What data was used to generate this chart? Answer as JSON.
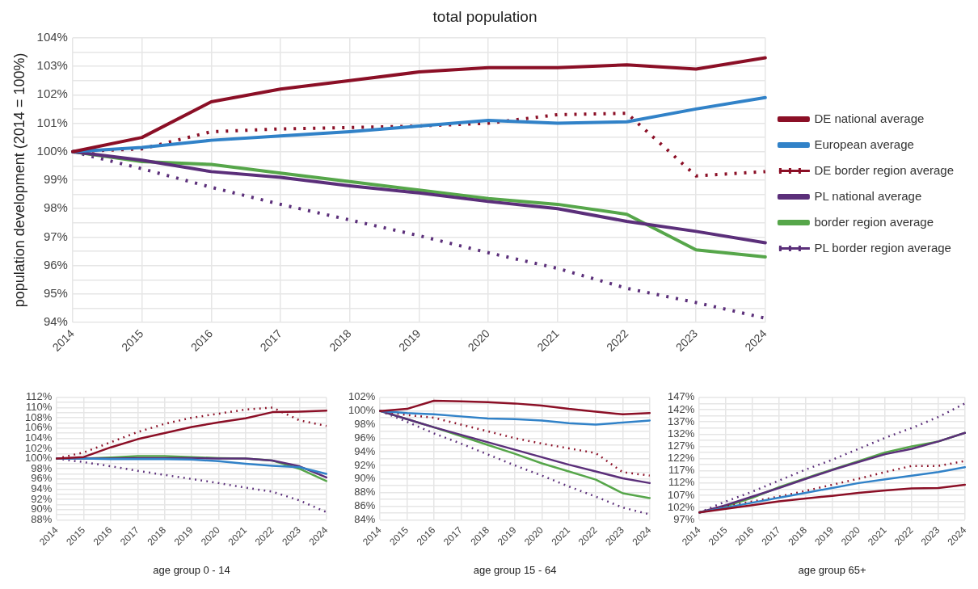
{
  "chart_data": [
    {
      "type": "line",
      "title": "total population",
      "ylabel": "population development (2014 = 100%)",
      "categories": [
        "2014",
        "2015",
        "2016",
        "2017",
        "2018",
        "2019",
        "2020",
        "2021",
        "2022",
        "2023",
        "2024"
      ],
      "ylim": [
        94,
        104
      ],
      "yticks": [
        {
          "value": 94,
          "label": "94%"
        },
        {
          "value": 94.5,
          "label": null
        },
        {
          "value": 95,
          "label": "95%"
        },
        {
          "value": 95.5,
          "label": null
        },
        {
          "value": 96,
          "label": "96%"
        },
        {
          "value": 96.5,
          "label": null
        },
        {
          "value": 97,
          "label": "97%"
        },
        {
          "value": 97.5,
          "label": null
        },
        {
          "value": 98,
          "label": "98%"
        },
        {
          "value": 98.5,
          "label": null
        },
        {
          "value": 99,
          "label": "99%"
        },
        {
          "value": 99.5,
          "label": null
        },
        {
          "value": 100,
          "label": "100%"
        },
        {
          "value": 100.5,
          "label": null
        },
        {
          "value": 101,
          "label": "101%"
        },
        {
          "value": 101.5,
          "label": null
        },
        {
          "value": 102,
          "label": "102%"
        },
        {
          "value": 102.5,
          "label": null
        },
        {
          "value": 103,
          "label": "103%"
        },
        {
          "value": 103.5,
          "label": null
        },
        {
          "value": 104,
          "label": "104%"
        }
      ],
      "grid": true,
      "legend": "right",
      "marker": "none",
      "series": [
        {
          "name": "DE national average",
          "color": "#8b0f26",
          "line_style": "solid",
          "values": [
            100,
            100.5,
            101.75,
            102.2,
            102.5,
            102.8,
            102.95,
            102.95,
            103.05,
            102.9,
            103.3
          ]
        },
        {
          "name": "European average",
          "color": "#3182c8",
          "line_style": "solid",
          "values": [
            100,
            100.15,
            100.4,
            100.55,
            100.7,
            100.9,
            101.1,
            101.0,
            101.05,
            101.5,
            101.9
          ]
        },
        {
          "name": "DE border region average",
          "color": "#8b0f26",
          "line_style": "dotted",
          "values": [
            100,
            100.1,
            100.7,
            100.8,
            100.85,
            100.9,
            101.0,
            101.3,
            101.35,
            99.15,
            99.3
          ]
        },
        {
          "name": "PL national average",
          "color": "#5b2f7a",
          "line_style": "solid",
          "values": [
            100,
            99.7,
            99.3,
            99.1,
            98.8,
            98.55,
            98.25,
            98.0,
            97.55,
            97.2,
            96.8
          ]
        },
        {
          "name": "border region average",
          "color": "#56a64a",
          "line_style": "solid",
          "values": [
            100,
            99.65,
            99.55,
            99.25,
            98.95,
            98.65,
            98.35,
            98.15,
            97.8,
            96.55,
            96.3
          ]
        },
        {
          "name": "PL border region average",
          "color": "#5b2f7a",
          "line_style": "dotted",
          "values": [
            100,
            99.4,
            98.75,
            98.15,
            97.6,
            97.05,
            96.45,
            95.9,
            95.2,
            94.7,
            94.15
          ]
        }
      ]
    },
    {
      "type": "line",
      "xlabel": "age group 0 - 14",
      "categories": [
        "2014",
        "2015",
        "2016",
        "2017",
        "2018",
        "2019",
        "2020",
        "2021",
        "2022",
        "2023",
        "2024"
      ],
      "ylim": [
        88,
        112
      ],
      "yticks": [
        {
          "value": 88,
          "label": "88%"
        },
        {
          "value": 89,
          "label": null
        },
        {
          "value": 90,
          "label": "90%"
        },
        {
          "value": 91,
          "label": null
        },
        {
          "value": 92,
          "label": "92%"
        },
        {
          "value": 93,
          "label": null
        },
        {
          "value": 94,
          "label": "94%"
        },
        {
          "value": 95,
          "label": null
        },
        {
          "value": 96,
          "label": "96%"
        },
        {
          "value": 97,
          "label": null
        },
        {
          "value": 98,
          "label": "98%"
        },
        {
          "value": 99,
          "label": null
        },
        {
          "value": 100,
          "label": "100%"
        },
        {
          "value": 101,
          "label": null
        },
        {
          "value": 102,
          "label": "102%"
        },
        {
          "value": 103,
          "label": null
        },
        {
          "value": 104,
          "label": "104%"
        },
        {
          "value": 105,
          "label": null
        },
        {
          "value": 106,
          "label": "106%"
        },
        {
          "value": 107,
          "label": null
        },
        {
          "value": 108,
          "label": "108%"
        },
        {
          "value": 109,
          "label": null
        },
        {
          "value": 110,
          "label": "110%"
        },
        {
          "value": 111,
          "label": null
        },
        {
          "value": 112,
          "label": "112%"
        }
      ],
      "grid": true,
      "marker": "none",
      "series": [
        {
          "color": "#8b0f26",
          "line_style": "solid",
          "values": [
            100,
            100.3,
            102.2,
            103.8,
            105,
            106.2,
            107.1,
            107.9,
            109.1,
            109.2,
            109.4
          ]
        },
        {
          "color": "#3182c8",
          "line_style": "solid",
          "values": [
            100,
            100,
            99.9,
            99.9,
            99.9,
            99.8,
            99.5,
            99.0,
            98.6,
            98.3,
            97.0
          ]
        },
        {
          "color": "#8b0f26",
          "line_style": "dotted",
          "values": [
            100,
            101.2,
            103.2,
            105.2,
            106.8,
            108.0,
            108.8,
            109.6,
            110.0,
            107.5,
            106.4
          ]
        },
        {
          "color": "#5b2f7a",
          "line_style": "solid",
          "values": [
            100,
            100,
            100,
            100.1,
            100.1,
            100.1,
            100.0,
            100.0,
            99.6,
            98.5,
            96.3
          ]
        },
        {
          "color": "#56a64a",
          "line_style": "solid",
          "values": [
            100,
            100,
            100.2,
            100.5,
            100.5,
            100.3,
            100.1,
            100.0,
            99.6,
            98.0,
            95.6
          ]
        },
        {
          "color": "#5b2f7a",
          "line_style": "dotted",
          "values": [
            100,
            99.3,
            98.5,
            97.6,
            96.8,
            96.0,
            95.2,
            94.3,
            93.5,
            91.8,
            89.5
          ]
        }
      ]
    },
    {
      "type": "line",
      "xlabel": "age group 15 - 64",
      "categories": [
        "2014",
        "2015",
        "2016",
        "2017",
        "2018",
        "2019",
        "2020",
        "2021",
        "2022",
        "2023",
        "2024"
      ],
      "ylim": [
        84,
        102
      ],
      "yticks": [
        {
          "value": 84,
          "label": "84%"
        },
        {
          "value": 85,
          "label": null
        },
        {
          "value": 86,
          "label": "86%"
        },
        {
          "value": 87,
          "label": null
        },
        {
          "value": 88,
          "label": "88%"
        },
        {
          "value": 89,
          "label": null
        },
        {
          "value": 90,
          "label": "90%"
        },
        {
          "value": 91,
          "label": null
        },
        {
          "value": 92,
          "label": "92%"
        },
        {
          "value": 93,
          "label": null
        },
        {
          "value": 94,
          "label": "94%"
        },
        {
          "value": 95,
          "label": null
        },
        {
          "value": 96,
          "label": "96%"
        },
        {
          "value": 97,
          "label": null
        },
        {
          "value": 98,
          "label": "98%"
        },
        {
          "value": 99,
          "label": null
        },
        {
          "value": 100,
          "label": "100%"
        },
        {
          "value": 101,
          "label": null
        },
        {
          "value": 102,
          "label": "102%"
        }
      ],
      "grid": true,
      "marker": "none",
      "series": [
        {
          "color": "#8b0f26",
          "line_style": "solid",
          "values": [
            100,
            100.3,
            101.5,
            101.4,
            101.3,
            101.1,
            100.8,
            100.3,
            99.9,
            99.5,
            99.7
          ]
        },
        {
          "color": "#3182c8",
          "line_style": "solid",
          "values": [
            100,
            99.7,
            99.5,
            99.2,
            98.9,
            98.8,
            98.6,
            98.2,
            98.0,
            98.3,
            98.6
          ]
        },
        {
          "color": "#8b0f26",
          "line_style": "dotted",
          "values": [
            100,
            99.4,
            99.0,
            98.0,
            97.0,
            96.0,
            95.2,
            94.5,
            93.8,
            91.0,
            90.5
          ]
        },
        {
          "color": "#5b2f7a",
          "line_style": "solid",
          "values": [
            100,
            98.8,
            97.6,
            96.5,
            95.4,
            94.3,
            93.2,
            92.1,
            91.1,
            90.1,
            89.4
          ]
        },
        {
          "color": "#56a64a",
          "line_style": "solid",
          "values": [
            100,
            98.8,
            97.6,
            96.3,
            95.0,
            93.7,
            92.3,
            91.1,
            89.9,
            87.9,
            87.2
          ]
        },
        {
          "color": "#5b2f7a",
          "line_style": "dotted",
          "values": [
            100,
            98.4,
            96.7,
            95.2,
            93.6,
            92.0,
            90.5,
            88.9,
            87.4,
            85.8,
            84.8
          ]
        }
      ]
    },
    {
      "type": "line",
      "xlabel": "age group 65+",
      "categories": [
        "2014",
        "2015",
        "2016",
        "2017",
        "2018",
        "2019",
        "2020",
        "2021",
        "2022",
        "2023",
        "2024"
      ],
      "ylim": [
        97,
        147
      ],
      "yticks": [
        {
          "value": 97,
          "label": "97%"
        },
        {
          "value": 99.5,
          "label": null
        },
        {
          "value": 102,
          "label": "102%"
        },
        {
          "value": 104.5,
          "label": null
        },
        {
          "value": 107,
          "label": "107%"
        },
        {
          "value": 109.5,
          "label": null
        },
        {
          "value": 112,
          "label": "112%"
        },
        {
          "value": 114.5,
          "label": null
        },
        {
          "value": 117,
          "label": "117%"
        },
        {
          "value": 119.5,
          "label": null
        },
        {
          "value": 122,
          "label": "122%"
        },
        {
          "value": 124.5,
          "label": null
        },
        {
          "value": 127,
          "label": "127%"
        },
        {
          "value": 129.5,
          "label": null
        },
        {
          "value": 132,
          "label": "132%"
        },
        {
          "value": 134.5,
          "label": null
        },
        {
          "value": 137,
          "label": "137%"
        },
        {
          "value": 139.5,
          "label": null
        },
        {
          "value": 142,
          "label": "142%"
        },
        {
          "value": 144.5,
          "label": null
        },
        {
          "value": 147,
          "label": "147%"
        }
      ],
      "grid": true,
      "marker": "none",
      "series": [
        {
          "color": "#8b0f26",
          "line_style": "solid",
          "values": [
            100,
            101.5,
            103,
            104.5,
            105.7,
            106.8,
            108,
            109,
            109.8,
            110,
            111.3
          ]
        },
        {
          "color": "#3182c8",
          "line_style": "solid",
          "values": [
            100,
            102,
            104,
            106,
            108,
            110,
            112,
            113.5,
            115,
            116.5,
            118.5
          ]
        },
        {
          "color": "#8b0f26",
          "line_style": "dotted",
          "values": [
            100,
            102.5,
            104.5,
            106.5,
            108.8,
            111.3,
            113.8,
            116.5,
            119,
            119,
            121
          ]
        },
        {
          "color": "#5b2f7a",
          "line_style": "solid",
          "values": [
            100,
            103,
            106.5,
            110,
            113.7,
            117.3,
            120.6,
            123.8,
            126,
            129,
            132.5
          ]
        },
        {
          "color": "#56a64a",
          "line_style": "solid",
          "values": [
            100,
            102.5,
            106,
            110.3,
            114,
            117.5,
            121,
            124.5,
            127,
            129,
            132.5
          ]
        },
        {
          "color": "#5b2f7a",
          "line_style": "dotted",
          "values": [
            100,
            104.5,
            108.5,
            113,
            117.5,
            121.5,
            126,
            130.5,
            134.5,
            139,
            144.5
          ]
        }
      ]
    }
  ]
}
